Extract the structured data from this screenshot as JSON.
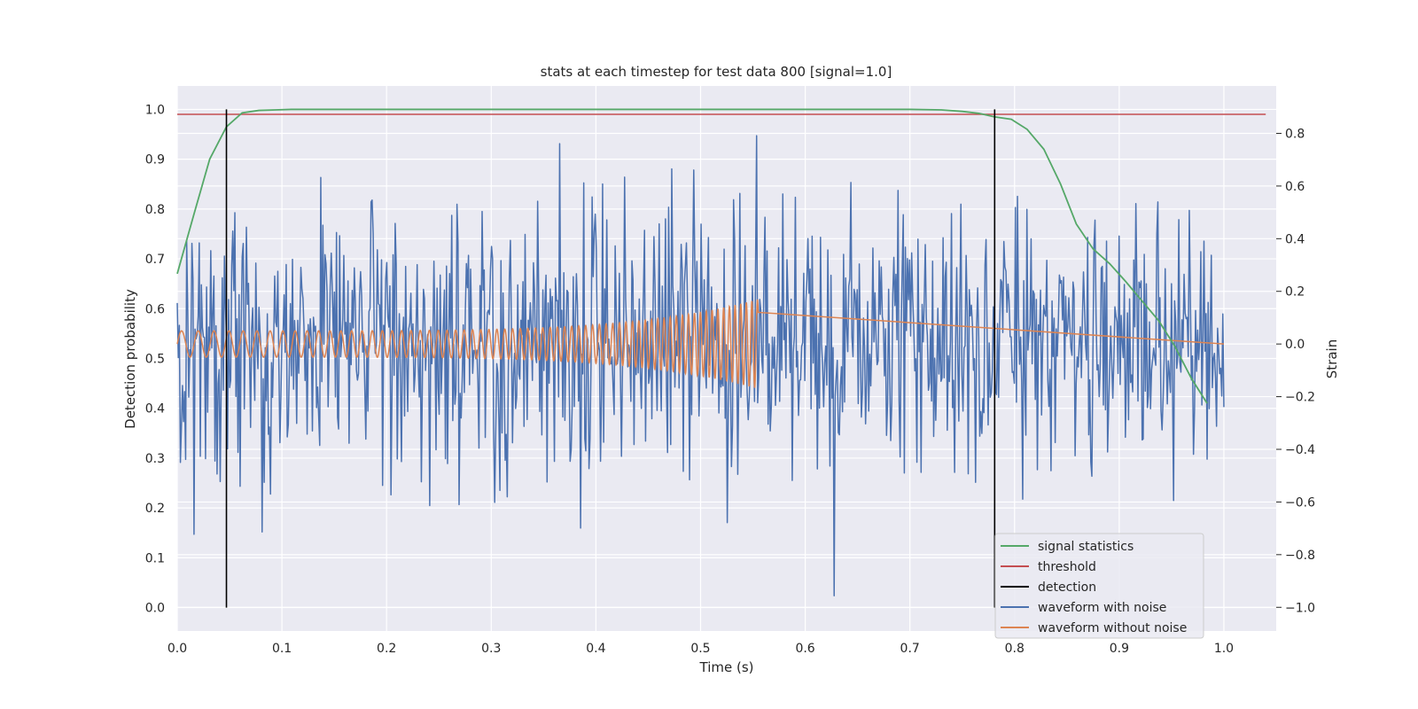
{
  "chart_data": {
    "type": "line",
    "title": "stats at each timestep for test data 800 [signal=1.0]",
    "xlabel": "Time (s)",
    "ylabel": "Detection probability",
    "y2label": "Strain",
    "xlim": [
      0.0,
      1.05
    ],
    "ylim": [
      -0.047,
      1.047
    ],
    "y2lim": [
      -1.09,
      0.98
    ],
    "grid": true,
    "legend_position": "bottom-right",
    "xticks": [
      "0.0",
      "0.1",
      "0.2",
      "0.3",
      "0.4",
      "0.5",
      "0.6",
      "0.7",
      "0.8",
      "0.9",
      "1.0"
    ],
    "yticks": [
      "0.0",
      "0.1",
      "0.2",
      "0.3",
      "0.4",
      "0.5",
      "0.6",
      "0.7",
      "0.8",
      "0.9",
      "1.0"
    ],
    "y2ticks": [
      "−1.0",
      "−0.8",
      "−0.6",
      "−0.4",
      "−0.2",
      "0.0",
      "0.2",
      "0.4",
      "0.6",
      "0.8"
    ],
    "series": [
      {
        "name": "signal statistics",
        "axis": "left",
        "color": "#55a868",
        "x": [
          0.0,
          0.016,
          0.031,
          0.047,
          0.062,
          0.078,
          0.094,
          0.109,
          0.125,
          0.2,
          0.3,
          0.4,
          0.5,
          0.6,
          0.7,
          0.73,
          0.75,
          0.766,
          0.781,
          0.797,
          0.812,
          0.828,
          0.844,
          0.859,
          0.875,
          0.891,
          0.906,
          0.922,
          0.938,
          0.953,
          0.969,
          0.984
        ],
        "y": [
          0.67,
          0.79,
          0.9,
          0.965,
          0.993,
          0.998,
          0.999,
          1.0,
          1.0,
          1.0,
          1.0,
          1.0,
          1.0,
          1.0,
          1.0,
          0.999,
          0.996,
          0.992,
          0.985,
          0.98,
          0.96,
          0.92,
          0.85,
          0.77,
          0.72,
          0.69,
          0.655,
          0.615,
          0.575,
          0.525,
          0.46,
          0.41
        ]
      },
      {
        "name": "threshold",
        "axis": "left",
        "color": "#c44e52",
        "x": [
          0.0,
          1.04
        ],
        "y": [
          0.99,
          0.99
        ]
      },
      {
        "name": "detection",
        "axis": "left",
        "color": "#000000",
        "vlines": [
          {
            "x": 0.047,
            "ymin": 0.0,
            "ymax": 1.0
          },
          {
            "x": 0.781,
            "ymin": 0.0,
            "ymax": 1.0
          }
        ]
      },
      {
        "name": "waveform with noise",
        "axis": "right",
        "color": "#4c72b0",
        "x_range": [
          0.0,
          1.0
        ],
        "amplitude_range": [
          -1.0,
          0.9
        ],
        "samples": 1000
      },
      {
        "name": "waveform without noise",
        "axis": "right",
        "color": "#dd8452",
        "x_range": [
          0.0,
          1.0
        ],
        "chirp_end": 0.555,
        "amplitude_start": 0.05,
        "amplitude_end": 0.17
      }
    ]
  }
}
